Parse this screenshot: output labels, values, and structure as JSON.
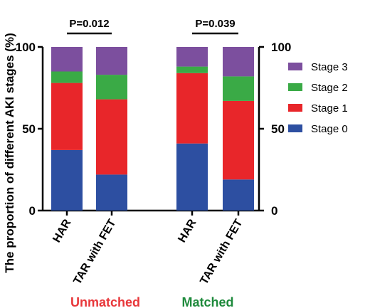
{
  "chart_data": {
    "type": "bar",
    "stacked": true,
    "ylabel": "The proportion of different AKI stages (%)",
    "ylim": [
      0,
      100
    ],
    "yticks": [
      0,
      50,
      100
    ],
    "categories": [
      "HAR",
      "TAR with FET",
      "HAR",
      "TAR with FET"
    ],
    "groups": [
      {
        "label": "Unmatched",
        "color": "#e8373a",
        "categories": [
          "HAR",
          "TAR with FET"
        ],
        "p_value": "P=0.012"
      },
      {
        "label": "Matched",
        "color": "#1e8a3c",
        "categories": [
          "HAR",
          "TAR with FET"
        ],
        "p_value": "P=0.039"
      }
    ],
    "series": [
      {
        "name": "Stage 0",
        "color": "#2d4fa1",
        "values": [
          37,
          22,
          41,
          19
        ]
      },
      {
        "name": "Stage 1",
        "color": "#e8262a",
        "values": [
          41,
          46,
          43,
          48
        ]
      },
      {
        "name": "Stage 2",
        "color": "#3aaa46",
        "values": [
          7,
          15,
          4,
          15
        ]
      },
      {
        "name": "Stage 3",
        "color": "#7c4f9e",
        "values": [
          15,
          17,
          12,
          18
        ]
      }
    ],
    "legend_order": [
      "Stage 3",
      "Stage 2",
      "Stage 1",
      "Stage 0"
    ],
    "legend_position": "right",
    "grid": false
  }
}
